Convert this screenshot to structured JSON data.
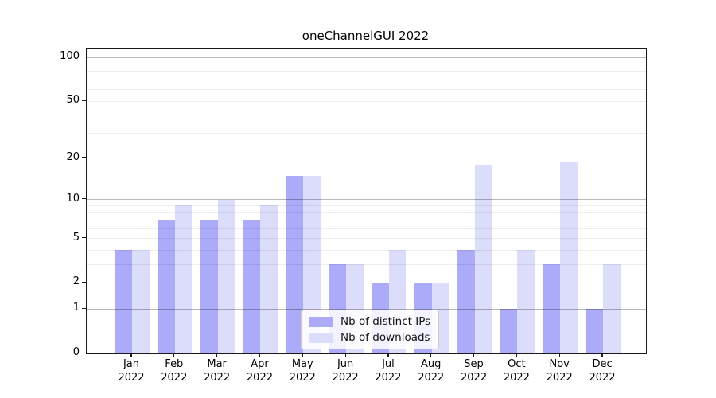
{
  "chart_data": {
    "type": "bar",
    "title": "oneChannelGUI 2022",
    "categories": [
      "Jan",
      "Feb",
      "Mar",
      "Apr",
      "May",
      "Jun",
      "Jul",
      "Aug",
      "Sep",
      "Oct",
      "Nov",
      "Dec"
    ],
    "category_year": "2022",
    "series": [
      {
        "name": "Nb of distinct IPs",
        "color": "#ababfa",
        "values": [
          4,
          7,
          7,
          7,
          15,
          3,
          2,
          2,
          4,
          1,
          3,
          1
        ]
      },
      {
        "name": "Nb of downloads",
        "color": "#dcdcfb",
        "values": [
          4,
          9,
          10,
          9,
          15,
          3,
          4,
          2,
          18,
          4,
          19,
          3
        ]
      }
    ],
    "xlabel": "",
    "ylabel": "",
    "yscale": "log1p",
    "ylim": [
      0,
      115
    ],
    "yticks": [
      0,
      1,
      2,
      5,
      10,
      20,
      50,
      100
    ],
    "ytick_labels": [
      "0",
      "1",
      "2",
      "5",
      "10",
      "20",
      "50",
      "100"
    ],
    "gridlines": {
      "major": [
        1,
        10,
        100
      ],
      "minor": [
        2,
        3,
        4,
        5,
        6,
        7,
        8,
        9,
        20,
        30,
        40,
        50,
        60,
        70,
        80,
        90
      ]
    },
    "grid": true,
    "legend_position": "lower center"
  },
  "colors": {
    "bar_distinct_ips": "#ababfa",
    "bar_downloads": "#dcdcfb",
    "major_grid": "rgba(0,0,0,0.28)",
    "minor_grid": "rgba(0,0,0,0.07)",
    "spine": "#1a1a1a",
    "text": "#000000"
  }
}
